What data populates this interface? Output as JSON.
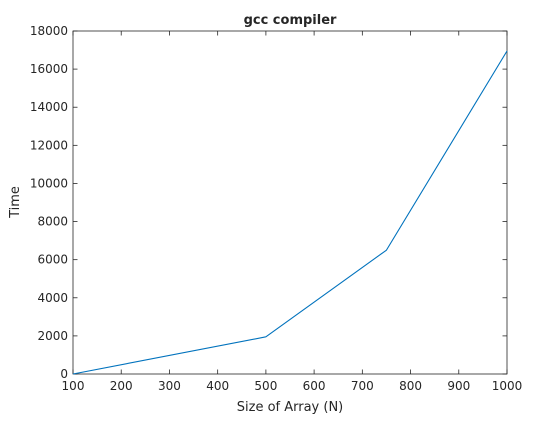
{
  "chart_data": {
    "type": "line",
    "title": "gcc compiler",
    "xlabel": "Size of Array (N)",
    "ylabel": "Time",
    "xlim": [
      100,
      1000
    ],
    "ylim": [
      0,
      18000
    ],
    "xticks": [
      100,
      200,
      300,
      400,
      500,
      600,
      700,
      800,
      900,
      1000
    ],
    "yticks": [
      0,
      2000,
      4000,
      6000,
      8000,
      10000,
      12000,
      14000,
      16000,
      18000
    ],
    "grid": false,
    "series": [
      {
        "color": "#0072bd",
        "x": [
          100,
          500,
          750,
          1000
        ],
        "y": [
          0,
          1950,
          6500,
          16950
        ]
      }
    ]
  }
}
